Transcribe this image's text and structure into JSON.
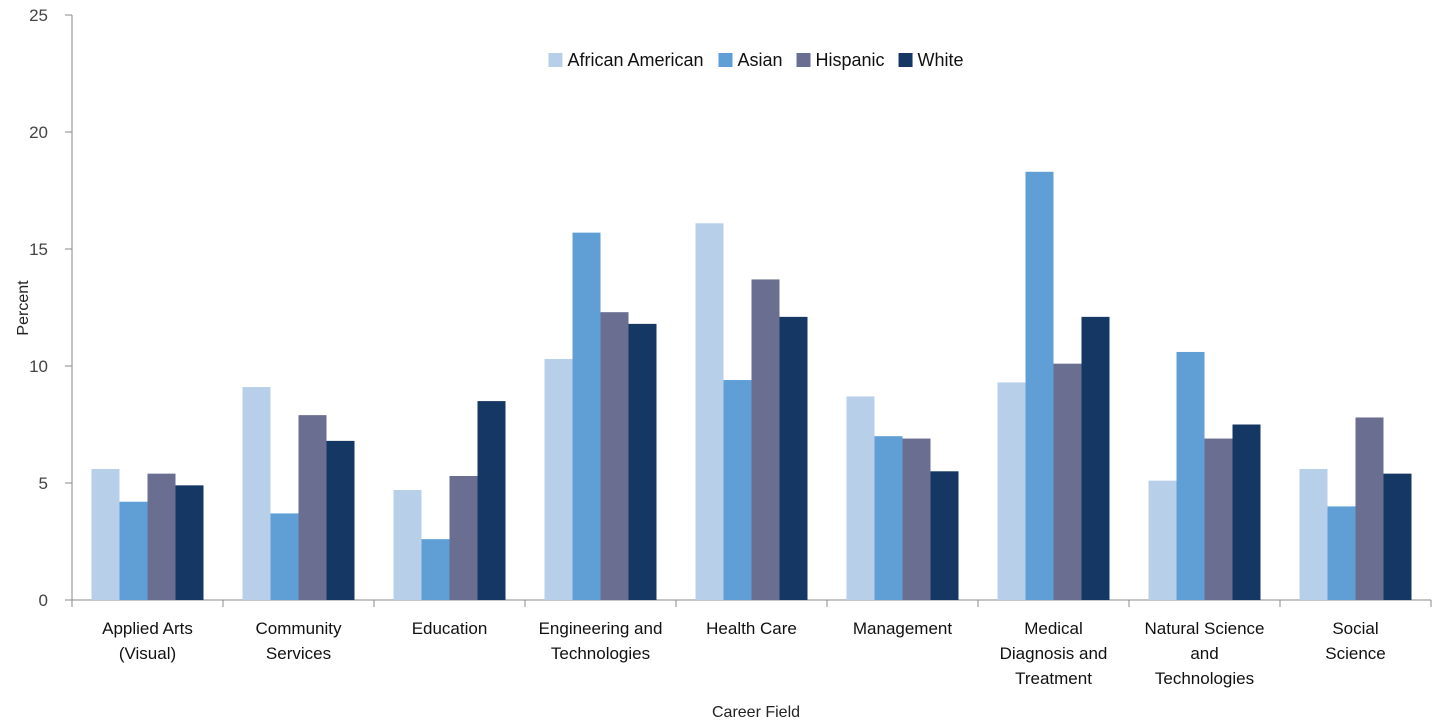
{
  "chart_data": {
    "type": "bar",
    "categories": [
      [
        "Applied Arts",
        "(Visual)"
      ],
      [
        "Community",
        "Services"
      ],
      [
        "Education"
      ],
      [
        "Engineering and",
        "Technologies"
      ],
      [
        "Health Care"
      ],
      [
        "Management"
      ],
      [
        "Medical",
        "Diagnosis and",
        "Treatment"
      ],
      [
        "Natural Science",
        "and",
        "Technologies"
      ],
      [
        "Social",
        "Science"
      ]
    ],
    "series": [
      {
        "name": "African American",
        "color": "#b8cfea",
        "values": [
          5.6,
          9.1,
          4.7,
          10.3,
          16.1,
          8.7,
          9.3,
          5.1,
          5.6
        ]
      },
      {
        "name": "Asian",
        "color": "#5f9fd6",
        "values": [
          4.2,
          3.7,
          2.6,
          15.7,
          9.4,
          7.0,
          18.3,
          10.6,
          4.0
        ]
      },
      {
        "name": "Hispanic",
        "color": "#6a6f91",
        "values": [
          5.4,
          7.9,
          5.3,
          12.3,
          13.7,
          6.9,
          10.1,
          6.9,
          7.8
        ]
      },
      {
        "name": "White",
        "color": "#153763",
        "values": [
          4.9,
          6.8,
          8.5,
          11.8,
          12.1,
          5.5,
          12.1,
          7.5,
          5.4
        ]
      }
    ],
    "title": "",
    "xlabel": "Career Field",
    "ylabel": "Percent",
    "ylim": [
      0,
      25
    ],
    "yticks": [
      0,
      5,
      10,
      15,
      20,
      25
    ],
    "grid": false,
    "legend_position": "top-center"
  }
}
